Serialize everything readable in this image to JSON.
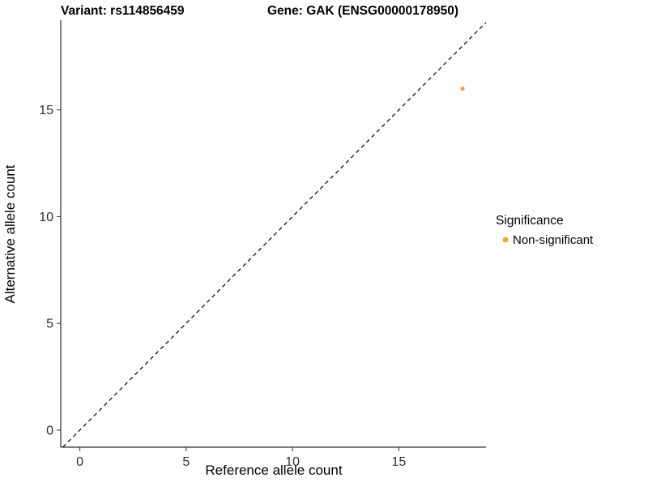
{
  "header": {
    "variant_title": "Variant: rs114856459",
    "gene_title": "Gene: GAK (ENSG00000178950)"
  },
  "chart_data": {
    "type": "scatter",
    "title": "Variant: rs114856459   Gene: GAK (ENSG00000178950)",
    "xlabel": "Reference allele count",
    "ylabel": "Alternative allele count",
    "xlim": [
      -0.9,
      19.1
    ],
    "ylim": [
      -0.8,
      19.2
    ],
    "xticks": [
      0,
      5,
      10,
      15
    ],
    "yticks": [
      0,
      5,
      10,
      15
    ],
    "grid": false,
    "series": [
      {
        "name": "Non-significant",
        "color": "#F9A242",
        "points": [
          {
            "x": 18,
            "y": 16
          }
        ]
      }
    ],
    "reference_line": {
      "type": "identity",
      "equation": "y = x",
      "style": "dashed",
      "color": "#000000"
    },
    "legend": {
      "title": "Significance",
      "position": "right",
      "entries": [
        {
          "label": "Non-significant",
          "color": "#F9A242"
        }
      ]
    }
  }
}
